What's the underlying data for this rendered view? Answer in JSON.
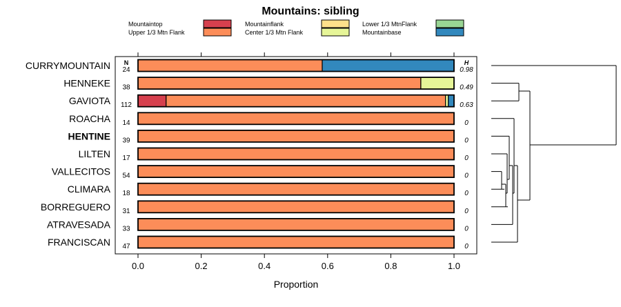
{
  "chart_data": {
    "type": "bar",
    "orientation": "horizontal",
    "stacked": true,
    "title": "Mountains: sibling",
    "xlabel": "Proportion",
    "ylabel": "",
    "xlim": [
      0,
      1
    ],
    "x_ticks": [
      "0.0",
      "0.2",
      "0.4",
      "0.6",
      "0.8",
      "1.0"
    ],
    "n_header": "N",
    "h_header": "H",
    "legend": [
      {
        "name": "Mountaintop",
        "color": "#d6404e"
      },
      {
        "name": "Upper 1/3 Mtn Flank",
        "color": "#fc8d59"
      },
      {
        "name": "Mountainflank",
        "color": "#fee08b"
      },
      {
        "name": "Center 1/3 Mtn Flank",
        "color": "#e6f598"
      },
      {
        "name": "Lower 1/3 MtnFlank",
        "color": "#99d594"
      },
      {
        "name": "Mountainbase",
        "color": "#3288bd"
      }
    ],
    "rows": [
      {
        "category": "CURRYMOUNTAIN",
        "n": "24",
        "h": "0.98",
        "bold": false,
        "values": [
          0,
          0.583,
          0,
          0,
          0,
          0.417
        ]
      },
      {
        "category": "HENNEKE",
        "n": "38",
        "h": "0.49",
        "bold": false,
        "values": [
          0,
          0.895,
          0,
          0.105,
          0,
          0
        ]
      },
      {
        "category": "GAVIOTA",
        "n": "112",
        "h": "0.63",
        "bold": false,
        "values": [
          0.089,
          0.884,
          0,
          0.009,
          0,
          0.018
        ]
      },
      {
        "category": "ROACHA",
        "n": "14",
        "h": "0",
        "bold": false,
        "values": [
          0,
          1,
          0,
          0,
          0,
          0
        ]
      },
      {
        "category": "HENTINE",
        "n": "39",
        "h": "0",
        "bold": true,
        "values": [
          0,
          1,
          0,
          0,
          0,
          0
        ]
      },
      {
        "category": "LILTEN",
        "n": "17",
        "h": "0",
        "bold": false,
        "values": [
          0,
          1,
          0,
          0,
          0,
          0
        ]
      },
      {
        "category": "VALLECITOS",
        "n": "54",
        "h": "0",
        "bold": false,
        "values": [
          0,
          1,
          0,
          0,
          0,
          0
        ]
      },
      {
        "category": "CLIMARA",
        "n": "18",
        "h": "0",
        "bold": false,
        "values": [
          0,
          1,
          0,
          0,
          0,
          0
        ]
      },
      {
        "category": "BORREGUERO",
        "n": "31",
        "h": "0",
        "bold": false,
        "values": [
          0,
          1,
          0,
          0,
          0,
          0
        ]
      },
      {
        "category": "ATRAVESADA",
        "n": "33",
        "h": "0",
        "bold": false,
        "values": [
          0,
          1,
          0,
          0,
          0,
          0
        ]
      },
      {
        "category": "FRANCISCAN",
        "n": "47",
        "h": "0",
        "bold": false,
        "values": [
          0,
          1,
          0,
          0,
          0,
          0
        ]
      }
    ]
  }
}
